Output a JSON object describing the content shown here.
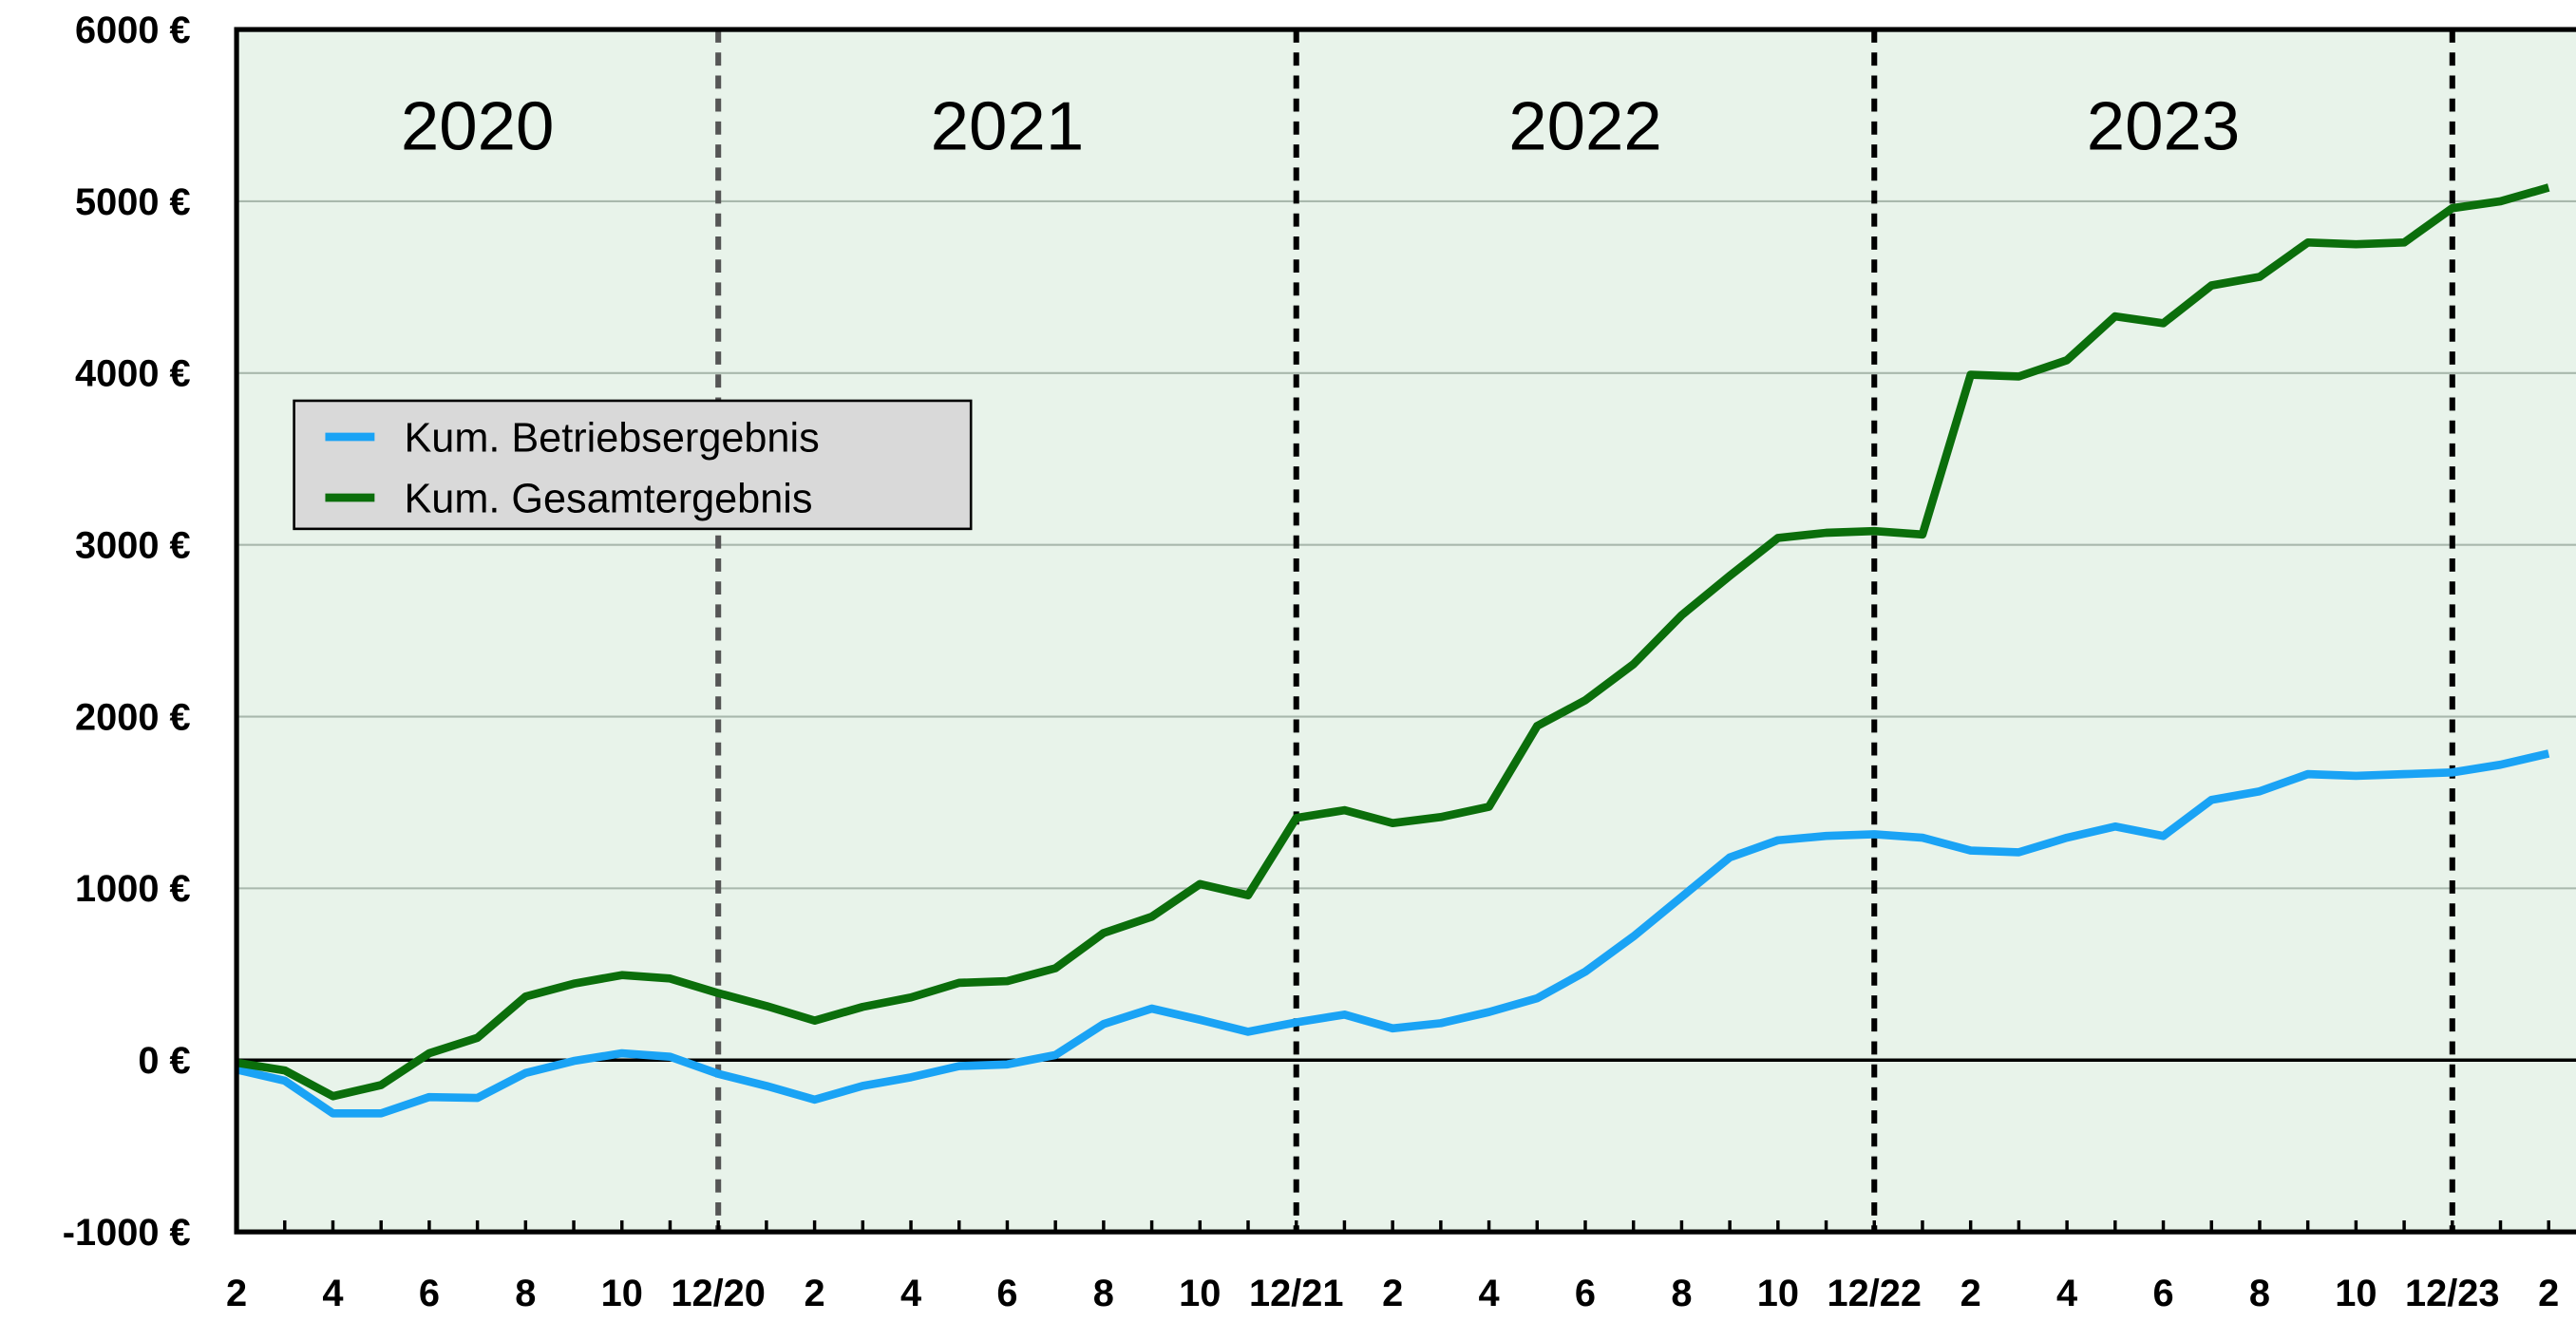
{
  "chart_data": {
    "type": "line",
    "categories": [
      "2",
      null,
      "4",
      null,
      "6",
      null,
      "8",
      null,
      "10",
      null,
      "12/20",
      null,
      "2",
      null,
      "4",
      null,
      "6",
      null,
      "8",
      null,
      "10",
      null,
      "12/21",
      null,
      "2",
      null,
      "4",
      null,
      "6",
      null,
      "8",
      null,
      "10",
      null,
      "12/22",
      null,
      "2",
      null,
      "4",
      null,
      "6",
      null,
      "8",
      null,
      "10",
      null,
      "12/23",
      null,
      "2"
    ],
    "series": [
      {
        "name": "Kum. Betriebsergebnis",
        "color": "#1aa3f5",
        "values": [
          -55,
          -120,
          -310,
          -310,
          -215,
          -220,
          -75,
          -5,
          40,
          20,
          -80,
          -150,
          -230,
          -150,
          -100,
          -35,
          -25,
          30,
          210,
          300,
          235,
          165,
          220,
          265,
          185,
          215,
          280,
          360,
          515,
          720,
          950,
          1180,
          1280,
          1305,
          1315,
          1295,
          1220,
          1210,
          1295,
          1360,
          1305,
          1515,
          1565,
          1665,
          1655,
          1665,
          1675,
          1720,
          1785
        ]
      },
      {
        "name": "Kum. Gesamtergebnis",
        "color": "#0b6e0b",
        "values": [
          -15,
          -60,
          -210,
          -145,
          40,
          130,
          370,
          445,
          495,
          475,
          390,
          315,
          230,
          310,
          365,
          450,
          460,
          535,
          740,
          835,
          1025,
          960,
          1410,
          1455,
          1380,
          1415,
          1475,
          1945,
          2095,
          2305,
          2590,
          2820,
          3040,
          3070,
          3080,
          3060,
          3990,
          3980,
          4075,
          4330,
          4290,
          4510,
          4560,
          4760,
          4750,
          4760,
          4960,
          5000,
          5080
        ]
      }
    ],
    "year_labels": [
      "2020",
      "2021",
      "2022",
      "2023"
    ],
    "ylim": [
      -1000,
      6000
    ],
    "yticks": [
      {
        "value": -1000,
        "label": "-1000 €"
      },
      {
        "value": 0,
        "label": "0 €"
      },
      {
        "value": 1000,
        "label": "1000 €"
      },
      {
        "value": 2000,
        "label": "2000 €"
      },
      {
        "value": 3000,
        "label": "3000 €"
      },
      {
        "value": 4000,
        "label": "4000 €"
      },
      {
        "value": 5000,
        "label": "5000 €"
      },
      {
        "value": 6000,
        "label": "6000 €"
      }
    ],
    "grid": true,
    "background": "#e8f3ea",
    "legend_position": "upper-left"
  }
}
